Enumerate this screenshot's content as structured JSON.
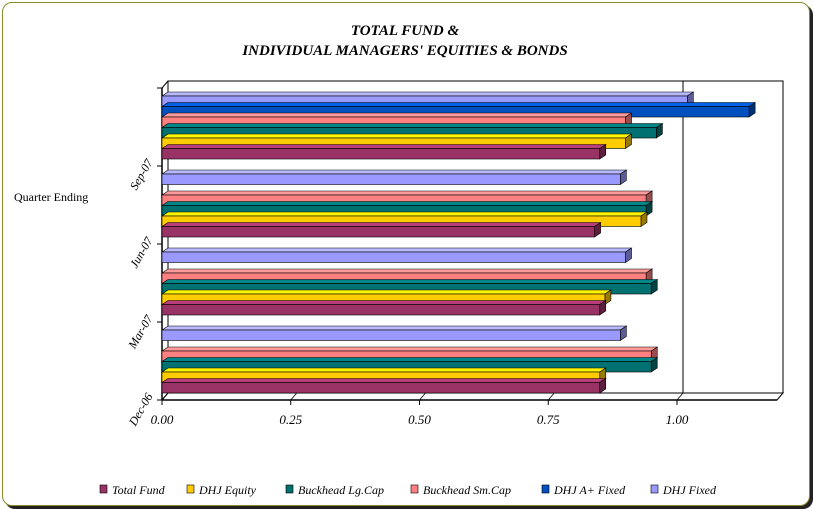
{
  "chart_data": {
    "type": "bar",
    "orientation": "horizontal",
    "title_lines": [
      "TOTAL FUND &",
      "INDIVIDUAL MANAGERS' EQUITIES & BONDS"
    ],
    "ylabel": "Quarter Ending",
    "xlabel": "",
    "xlim": [
      0,
      1.15
    ],
    "xticks": [
      "0.00",
      "0.25",
      "0.50",
      "0.75",
      "1.00"
    ],
    "xtick_values": [
      0,
      0.25,
      0.5,
      0.75,
      1.0
    ],
    "grid": false,
    "legend_position": "bottom",
    "categories": [
      "Dec-06",
      "Mar-07",
      "Jun-07",
      "Sep-07"
    ],
    "series": [
      {
        "name": "Total Fund",
        "color": "#993366",
        "values": [
          0.85,
          0.85,
          0.84,
          0.85
        ]
      },
      {
        "name": "DHJ Equity",
        "color": "#ffcc00",
        "values": [
          0.85,
          0.86,
          0.93,
          0.9
        ]
      },
      {
        "name": "Buckhead Lg.Cap",
        "color": "#007070",
        "values": [
          0.95,
          0.95,
          0.94,
          0.96
        ]
      },
      {
        "name": "Buckhead Sm.Cap",
        "color": "#ff8080",
        "values": [
          0.95,
          0.94,
          0.94,
          0.9
        ]
      },
      {
        "name": "DHJ A+ Fixed",
        "color": "#0050c0",
        "values": [
          null,
          null,
          null,
          1.14
        ]
      },
      {
        "name": "DHJ Fixed",
        "color": "#9999ff",
        "values": [
          0.89,
          0.9,
          0.89,
          1.02
        ]
      }
    ]
  }
}
